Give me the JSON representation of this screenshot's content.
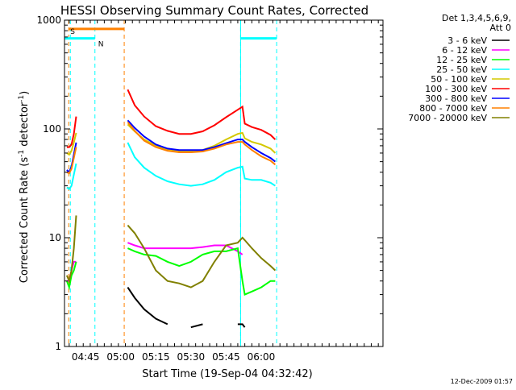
{
  "chart_data": {
    "type": "line",
    "title": "HESSI Observing Summary Count Rates, Corrected",
    "xlabel": "Start Time (19-Sep-04 04:32:42)",
    "ylabel": "Corrected Count Rate (s",
    "ylabel_sup1": "-1",
    "ylabel_mid": " detector",
    "ylabel_sup2": "-1",
    "ylabel_end": ")",
    "yscale": "log",
    "ylim": [
      1,
      1000
    ],
    "xlim_min": [
      276,
      412
    ],
    "x_ticks": [
      {
        "label": "04:45",
        "min": 285
      },
      {
        "label": "05:00",
        "min": 300
      },
      {
        "label": "05:15",
        "min": 315
      },
      {
        "label": "05:30",
        "min": 330
      },
      {
        "label": "05:45",
        "min": 345
      },
      {
        "label": "06:00",
        "min": 360
      }
    ],
    "y_ticks": [
      {
        "label": "1",
        "value": 1
      },
      {
        "label": "10",
        "value": 10
      },
      {
        "label": "100",
        "value": 100
      },
      {
        "label": "1000",
        "value": 1000
      }
    ],
    "legend_header": [
      "Det 1,3,4,5,6,9,",
      "Att 0"
    ],
    "legend_placement": "right",
    "series": [
      {
        "name": "3 - 6 keV",
        "color": "#000000"
      },
      {
        "name": "6 - 12 keV",
        "color": "#ff00ff"
      },
      {
        "name": "12 - 25 keV",
        "color": "#00ff00"
      },
      {
        "name": "25 - 50 keV",
        "color": "#00ffff"
      },
      {
        "name": "50 - 100 keV",
        "color": "#d4c800"
      },
      {
        "name": "100 - 300 keV",
        "color": "#ff0000"
      },
      {
        "name": "300 - 800 keV",
        "color": "#0000ff"
      },
      {
        "name": "800 - 7000 keV",
        "color": "#ff8000"
      },
      {
        "name": "7000 - 20000 keV",
        "color": "#808000"
      }
    ],
    "data": {
      "segment_a_x": [
        277,
        278,
        279,
        280,
        281
      ],
      "segment_b_x": [
        303,
        306,
        310,
        315,
        320,
        325,
        330,
        335,
        340,
        345,
        350,
        352,
        353,
        356,
        360,
        364,
        366
      ],
      "red_a": [
        68,
        68,
        72,
        90,
        130
      ],
      "red_b": [
        230,
        165,
        130,
        106,
        96,
        90,
        90,
        95,
        108,
        128,
        150,
        160,
        112,
        104,
        98,
        88,
        80
      ],
      "blue_a": [
        42,
        40,
        45,
        58,
        75
      ],
      "blue_b": [
        120,
        102,
        85,
        72,
        66,
        64,
        64,
        64,
        68,
        74,
        80,
        80,
        76,
        68,
        60,
        54,
        50
      ],
      "yellow_a": [
        60,
        58,
        63,
        75,
        92
      ],
      "yellow_b": [
        110,
        95,
        80,
        70,
        65,
        63,
        63,
        64,
        70,
        80,
        90,
        92,
        82,
        76,
        72,
        66,
        60
      ],
      "orange_a": [
        40,
        39,
        43,
        54,
        68
      ],
      "orange_b": [
        115,
        96,
        78,
        68,
        63,
        61,
        61,
        62,
        66,
        72,
        76,
        76,
        72,
        64,
        56,
        51,
        47
      ],
      "cyan_a": [
        29,
        28,
        30,
        38,
        48
      ],
      "cyan_b": [
        75,
        55,
        44,
        37,
        33,
        31,
        30,
        31,
        34,
        40,
        44,
        45,
        35,
        34,
        34,
        32,
        30
      ],
      "magenta_a": [
        4,
        4,
        5,
        6,
        6
      ],
      "magenta_b": [
        9,
        8.5,
        8,
        8,
        8,
        8,
        8,
        8.2,
        8.5,
        8.5,
        7.5,
        7,
        null,
        null,
        null,
        null,
        null
      ],
      "green_a": [
        4,
        3.5,
        4.5,
        5,
        6
      ],
      "green_b": [
        8,
        7.5,
        7,
        6.8,
        6,
        5.5,
        6,
        7,
        7.5,
        7.5,
        8,
        4,
        3,
        3.2,
        3.5,
        4,
        4
      ],
      "olive_a": [
        4.5,
        4,
        5,
        8,
        16
      ],
      "olive_b": [
        13,
        11,
        8,
        5,
        4,
        3.8,
        3.5,
        4,
        6,
        8.5,
        9,
        10,
        9.5,
        8,
        6.5,
        5.5,
        5
      ],
      "black_b": [
        3.5,
        2.8,
        2.2,
        1.8,
        1.6,
        null,
        1.5,
        1.6,
        null,
        null,
        1.6,
        1.6,
        1.5,
        null,
        null,
        null,
        null
      ]
    },
    "segments": {
      "S_min": 277.8,
      "N_min": 289,
      "orange_bar_end_min": 301.5,
      "orange_bar_value": 830,
      "cyan_bar_value": 680,
      "cyan_dashes_min": [
        278.5,
        289,
        351.2,
        366.6
      ],
      "orange_dashes_min": [
        277.8,
        301.5
      ]
    },
    "labels": {
      "S": "S",
      "N": "N"
    }
  },
  "footer": {
    "timestamp": "12-Dec-2009 01:57"
  }
}
